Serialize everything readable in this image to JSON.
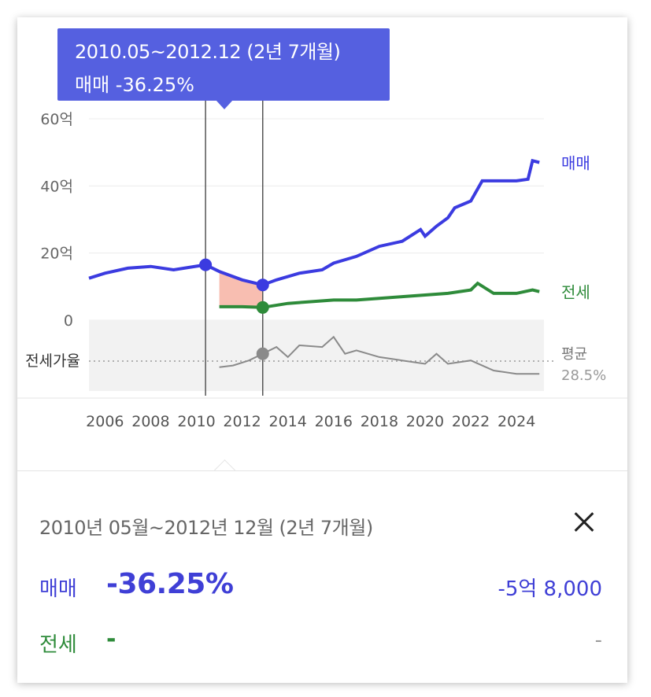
{
  "tooltip": {
    "range": "2010.05~2012.12 (2년 7개월)",
    "sale_change": "매매 -36.25%"
  },
  "detail": {
    "range": "2010년 05월~2012년 12월 (2년 7개월)",
    "sale_label": "매매",
    "sale_change": "-36.25%",
    "sale_amount": "-5억 8,000",
    "rent_label": "전세",
    "rent_change": "-",
    "rent_amount": "-"
  },
  "colors": {
    "sale": "#3b3be0",
    "rent": "#2e8b3a",
    "ratio": "#8a8a8a",
    "highlight": "#f7b3a3",
    "tooltip_bg": "#5560e0"
  },
  "chart_data": {
    "type": "line",
    "x_range": [
      2005.3,
      2025.2
    ],
    "x_ticks": [
      "2006",
      "2008",
      "2010",
      "2012",
      "2014",
      "2016",
      "2018",
      "2020",
      "2022",
      "2024"
    ],
    "y_range": [
      0,
      60
    ],
    "y_ticks": [
      "60억",
      "40억",
      "20억",
      "0"
    ],
    "y_unit": "억",
    "series": [
      {
        "name": "매매",
        "points": [
          [
            2005.3,
            12.5
          ],
          [
            2006,
            14
          ],
          [
            2007,
            15.5
          ],
          [
            2008,
            16
          ],
          [
            2009,
            15
          ],
          [
            2010.4,
            16.5
          ],
          [
            2011,
            14.5
          ],
          [
            2012,
            12
          ],
          [
            2012.9,
            10.5
          ],
          [
            2013.5,
            12
          ],
          [
            2014.5,
            14
          ],
          [
            2015.5,
            15
          ],
          [
            2016,
            17
          ],
          [
            2017,
            19
          ],
          [
            2018,
            22
          ],
          [
            2019,
            23.5
          ],
          [
            2019.8,
            27
          ],
          [
            2020,
            25
          ],
          [
            2020.5,
            28
          ],
          [
            2021,
            30.5
          ],
          [
            2021.3,
            33.5
          ],
          [
            2022,
            35.5
          ],
          [
            2022.5,
            41.5
          ],
          [
            2024,
            41.5
          ],
          [
            2024.5,
            42
          ],
          [
            2024.7,
            47.5
          ],
          [
            2025,
            47
          ]
        ]
      },
      {
        "name": "전세",
        "points": [
          [
            2011,
            4
          ],
          [
            2012,
            4
          ],
          [
            2012.9,
            3.8
          ],
          [
            2014,
            5
          ],
          [
            2015,
            5.5
          ],
          [
            2016,
            6
          ],
          [
            2017,
            6
          ],
          [
            2018,
            6.5
          ],
          [
            2019,
            7
          ],
          [
            2020,
            7.5
          ],
          [
            2021,
            8
          ],
          [
            2022,
            9
          ],
          [
            2022.3,
            11
          ],
          [
            2023,
            8
          ],
          [
            2024,
            8
          ],
          [
            2024.7,
            9
          ],
          [
            2025,
            8.5
          ]
        ]
      },
      {
        "name": "전세가율",
        "points": [
          [
            2011,
            -14
          ],
          [
            2011.6,
            -13.5
          ],
          [
            2012.3,
            -12
          ],
          [
            2012.9,
            -10
          ],
          [
            2013.5,
            -8
          ],
          [
            2014,
            -11
          ],
          [
            2014.5,
            -7.5
          ],
          [
            2015.5,
            -8
          ],
          [
            2016,
            -5
          ],
          [
            2016.5,
            -10
          ],
          [
            2017,
            -9
          ],
          [
            2018,
            -11
          ],
          [
            2019,
            -12
          ],
          [
            2020,
            -13
          ],
          [
            2020.5,
            -10
          ],
          [
            2021,
            -13
          ],
          [
            2022,
            -12
          ],
          [
            2023,
            -15
          ],
          [
            2024,
            -16
          ],
          [
            2025,
            -16
          ]
        ]
      }
    ],
    "right_labels": [
      "매매",
      "전세"
    ],
    "ratio_label": "전세가율",
    "average_label": "평균",
    "average_value": "28.5%",
    "selection": {
      "start": 2010.4,
      "end": 2012.9
    }
  }
}
